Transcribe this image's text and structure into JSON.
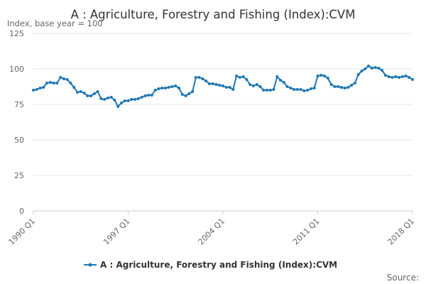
{
  "chart_data": {
    "type": "line",
    "title": "A : Agriculture, Forestry and Fishing (Index):CVM",
    "subtitle": "Index, base year = 100",
    "xlabel": "",
    "ylabel": "",
    "x_start": "1990 Q1",
    "x_end": "2018 Q1",
    "frequency": "quarterly",
    "x_tick_labels": [
      "1990 Q1",
      "1997 Q1",
      "2004 Q1",
      "2011 Q1",
      "2018 Q1"
    ],
    "ylim": [
      0,
      125
    ],
    "y_ticks": [
      0,
      25,
      50,
      75,
      100,
      125
    ],
    "grid": true,
    "legend_position": "bottom",
    "source_label": "Source:",
    "series": [
      {
        "name": "A : Agriculture, Forestry and Fishing (Index):CVM",
        "color": "#1f77b4",
        "values": [
          85,
          85.5,
          86.5,
          87,
          90,
          90.5,
          90,
          90,
          94,
          93,
          92.5,
          90,
          87,
          83.5,
          84,
          83,
          81,
          81,
          82.5,
          84,
          79,
          78.5,
          79.5,
          80,
          78,
          73.5,
          76,
          77.5,
          77.5,
          78.5,
          78.5,
          79,
          80,
          81,
          81.5,
          81.5,
          85,
          86,
          86.5,
          86.5,
          87,
          87.5,
          88,
          86.5,
          82,
          81,
          82.5,
          84,
          94,
          94,
          93,
          91.5,
          89.5,
          89.5,
          89,
          88.5,
          88,
          87,
          87,
          85.5,
          95,
          94,
          94.5,
          92.5,
          89,
          88,
          89,
          87.5,
          85,
          85,
          85,
          85.5,
          94.5,
          92,
          90.5,
          87.5,
          86.5,
          85.5,
          85.5,
          85.5,
          84.5,
          85,
          86,
          86.5,
          95,
          95.5,
          95,
          93.5,
          89,
          87.5,
          87.5,
          87,
          86.5,
          87,
          88.5,
          90,
          96,
          98.5,
          100,
          102,
          100.5,
          101,
          100.5,
          99,
          95.5,
          94.5,
          94,
          94.5,
          94,
          94.5,
          95,
          94,
          92.5
        ]
      }
    ]
  }
}
